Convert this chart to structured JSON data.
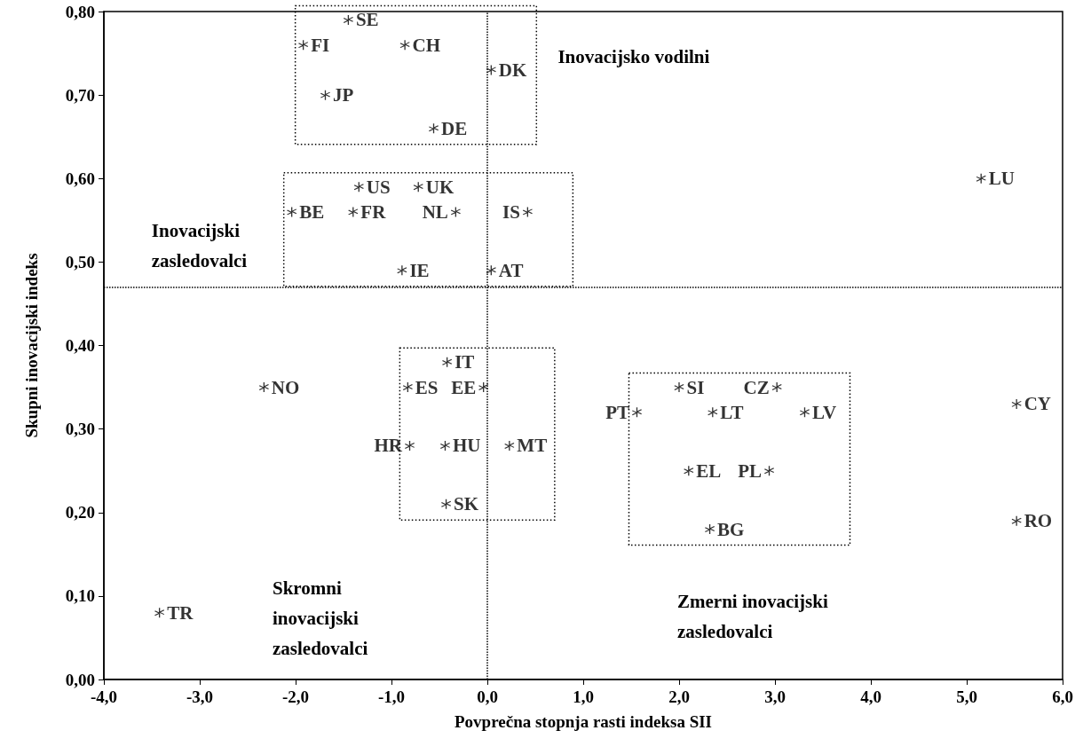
{
  "chart_data": {
    "type": "scatter",
    "xlabel": "Povprečna stopnja rasti indeksa SII",
    "ylabel": "Skupni inovacijski indeks",
    "marker": "star",
    "xlim": [
      -4,
      6
    ],
    "ylim": [
      0,
      0.8
    ],
    "xticks": [
      {
        "value": -4,
        "label": "-4,0"
      },
      {
        "value": -3,
        "label": "-3,0"
      },
      {
        "value": -2,
        "label": "-2,0"
      },
      {
        "value": -1,
        "label": "-1,0"
      },
      {
        "value": 0,
        "label": "0,0"
      },
      {
        "value": 1,
        "label": "1,0"
      },
      {
        "value": 2,
        "label": "2,0"
      },
      {
        "value": 3,
        "label": "3,0"
      },
      {
        "value": 4,
        "label": "4,0"
      },
      {
        "value": 5,
        "label": "5,0"
      },
      {
        "value": 6,
        "label": "6,0"
      }
    ],
    "yticks": [
      {
        "value": 0,
        "label": "0,00"
      },
      {
        "value": 0.1,
        "label": "0,10"
      },
      {
        "value": 0.2,
        "label": "0,20"
      },
      {
        "value": 0.3,
        "label": "0,30"
      },
      {
        "value": 0.4,
        "label": "0,40"
      },
      {
        "value": 0.5,
        "label": "0,50"
      },
      {
        "value": 0.6,
        "label": "0,60"
      },
      {
        "value": 0.7,
        "label": "0,70"
      },
      {
        "value": 0.8,
        "label": "0,80"
      }
    ],
    "ref_lines": [
      {
        "axis": "x",
        "value": 0,
        "label": null,
        "line_style": "dotted",
        "color": "#000000"
      },
      {
        "axis": "y",
        "value": 0.47,
        "label": null,
        "line_style": "dotted",
        "color": "#000000"
      }
    ],
    "annotations": [
      "Inovacijsko vodilni",
      "Inovacijski zasledovalci",
      "Skromni inovacijski zasledovalci",
      "Zmerni inovacijski zasledovalci"
    ],
    "series": [
      {
        "name": "SE",
        "color": "#000000",
        "x": [
          -1.45
        ],
        "values": [
          0.79
        ]
      },
      {
        "name": "FI",
        "color": "#000000",
        "x": [
          -1.92
        ],
        "values": [
          0.76
        ]
      },
      {
        "name": "CH",
        "color": "#000000",
        "x": [
          -0.86
        ],
        "values": [
          0.76
        ]
      },
      {
        "name": "DK",
        "color": "#000000",
        "x": [
          0.04
        ],
        "values": [
          0.73
        ]
      },
      {
        "name": "JP",
        "color": "#000000",
        "x": [
          -1.69
        ],
        "values": [
          0.7
        ]
      },
      {
        "name": "DE",
        "color": "#000000",
        "x": [
          -0.56
        ],
        "values": [
          0.66
        ]
      },
      {
        "name": "US",
        "color": "#000000",
        "x": [
          -1.34
        ],
        "values": [
          0.59
        ]
      },
      {
        "name": "UK",
        "color": "#000000",
        "x": [
          -0.72
        ],
        "values": [
          0.59
        ]
      },
      {
        "name": "BE",
        "color": "#000000",
        "x": [
          -2.04
        ],
        "values": [
          0.56
        ]
      },
      {
        "name": "FR",
        "color": "#000000",
        "x": [
          -1.4
        ],
        "values": [
          0.56
        ]
      },
      {
        "name": "NL",
        "color": "#000000",
        "x": [
          -0.33
        ],
        "values": [
          0.56
        ]
      },
      {
        "name": "IS",
        "color": "#000000",
        "x": [
          0.42
        ],
        "values": [
          0.56
        ]
      },
      {
        "name": "IE",
        "color": "#000000",
        "x": [
          -0.89
        ],
        "values": [
          0.49
        ]
      },
      {
        "name": "AT",
        "color": "#000000",
        "x": [
          0.04
        ],
        "values": [
          0.49
        ]
      },
      {
        "name": "IT",
        "color": "#000000",
        "x": [
          -0.42
        ],
        "values": [
          0.38
        ]
      },
      {
        "name": "ES",
        "color": "#000000",
        "x": [
          -0.83
        ],
        "values": [
          0.35
        ]
      },
      {
        "name": "EE",
        "color": "#000000",
        "x": [
          -0.04
        ],
        "values": [
          0.35
        ]
      },
      {
        "name": "HR",
        "color": "#000000",
        "x": [
          -0.81
        ],
        "values": [
          0.28
        ]
      },
      {
        "name": "HU",
        "color": "#000000",
        "x": [
          -0.44
        ],
        "values": [
          0.28
        ]
      },
      {
        "name": "MT",
        "color": "#000000",
        "x": [
          0.23
        ],
        "values": [
          0.28
        ]
      },
      {
        "name": "SK",
        "color": "#000000",
        "x": [
          -0.43
        ],
        "values": [
          0.21
        ]
      },
      {
        "name": "SI",
        "color": "#000000",
        "x": [
          2.0
        ],
        "values": [
          0.35
        ]
      },
      {
        "name": "CZ",
        "color": "#000000",
        "x": [
          3.02
        ],
        "values": [
          0.35
        ]
      },
      {
        "name": "PT",
        "color": "#000000",
        "x": [
          1.56
        ],
        "values": [
          0.32
        ]
      },
      {
        "name": "LT",
        "color": "#000000",
        "x": [
          2.35
        ],
        "values": [
          0.32
        ]
      },
      {
        "name": "LV",
        "color": "#000000",
        "x": [
          3.31
        ],
        "values": [
          0.32
        ]
      },
      {
        "name": "EL",
        "color": "#000000",
        "x": [
          2.1
        ],
        "values": [
          0.25
        ]
      },
      {
        "name": "PL",
        "color": "#000000",
        "x": [
          2.94
        ],
        "values": [
          0.25
        ]
      },
      {
        "name": "BG",
        "color": "#000000",
        "x": [
          2.32
        ],
        "values": [
          0.18
        ]
      },
      {
        "name": "LU",
        "color": "#000000",
        "x": [
          5.15
        ],
        "values": [
          0.6
        ]
      },
      {
        "name": "NO",
        "color": "#000000",
        "x": [
          -2.33
        ],
        "values": [
          0.35
        ]
      },
      {
        "name": "CY",
        "color": "#000000",
        "x": [
          5.52
        ],
        "values": [
          0.33
        ]
      },
      {
        "name": "RO",
        "color": "#000000",
        "x": [
          5.52
        ],
        "values": [
          0.19
        ]
      },
      {
        "name": "TR",
        "color": "#000000",
        "x": [
          -3.42
        ],
        "values": [
          0.08
        ]
      }
    ]
  }
}
